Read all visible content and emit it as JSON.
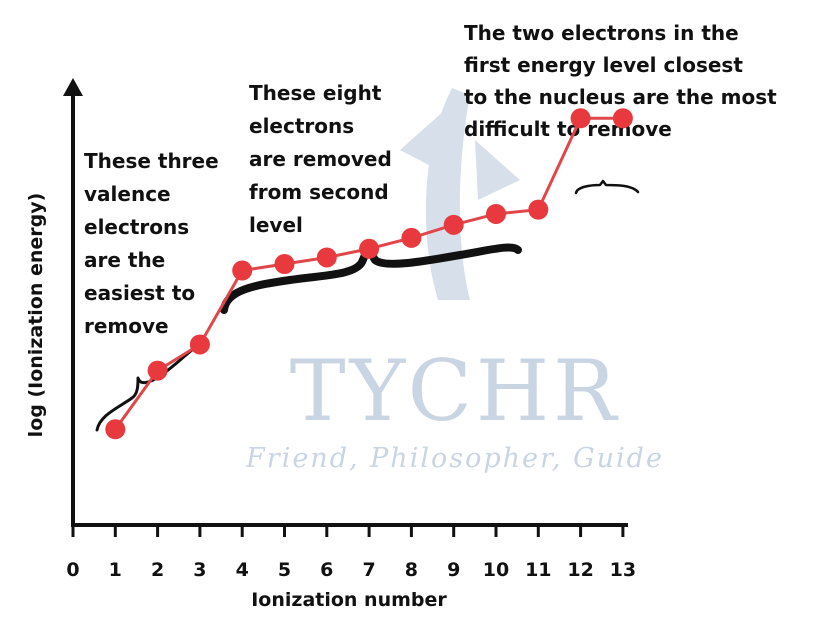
{
  "chart_data": {
    "type": "line",
    "xlabel": "Ionization number",
    "ylabel": "log (Ionization energy)",
    "xlim": [
      0,
      13
    ],
    "ylim": [
      0,
      10
    ],
    "x_ticks": [
      "0",
      "1",
      "2",
      "3",
      "4",
      "5",
      "6",
      "7",
      "8",
      "9",
      "10",
      "11",
      "12",
      "13"
    ],
    "y_ticks_shown": false,
    "grid": false,
    "series": [
      {
        "x": [
          1,
          2,
          3,
          4,
          5,
          6,
          7,
          8,
          9,
          10,
          11,
          12,
          13
        ],
        "y": [
          2.2,
          3.55,
          4.15,
          5.85,
          6.0,
          6.15,
          6.35,
          6.6,
          6.9,
          7.15,
          7.25,
          9.35,
          9.35
        ]
      }
    ],
    "annotations": [
      {
        "id": "valence",
        "lines": [
          "These three",
          "valence",
          "electrons",
          "are the",
          "easiest to",
          "remove"
        ]
      },
      {
        "id": "second-level",
        "lines": [
          "These eight",
          "electrons",
          "are removed",
          "from second",
          "level"
        ]
      },
      {
        "id": "first-level",
        "lines": [
          "The two electrons in the",
          "first energy level closest",
          "to the nucleus are the most",
          "difficult to remove"
        ]
      }
    ]
  },
  "watermark": {
    "brand": "TYCHR",
    "tagline": "Friend, Philosopher, Guide"
  },
  "colors": {
    "series": "#e8393f",
    "series_line": "#e0474b",
    "axis": "#111111",
    "text": "#111111",
    "watermark": "#c9d5e3"
  }
}
